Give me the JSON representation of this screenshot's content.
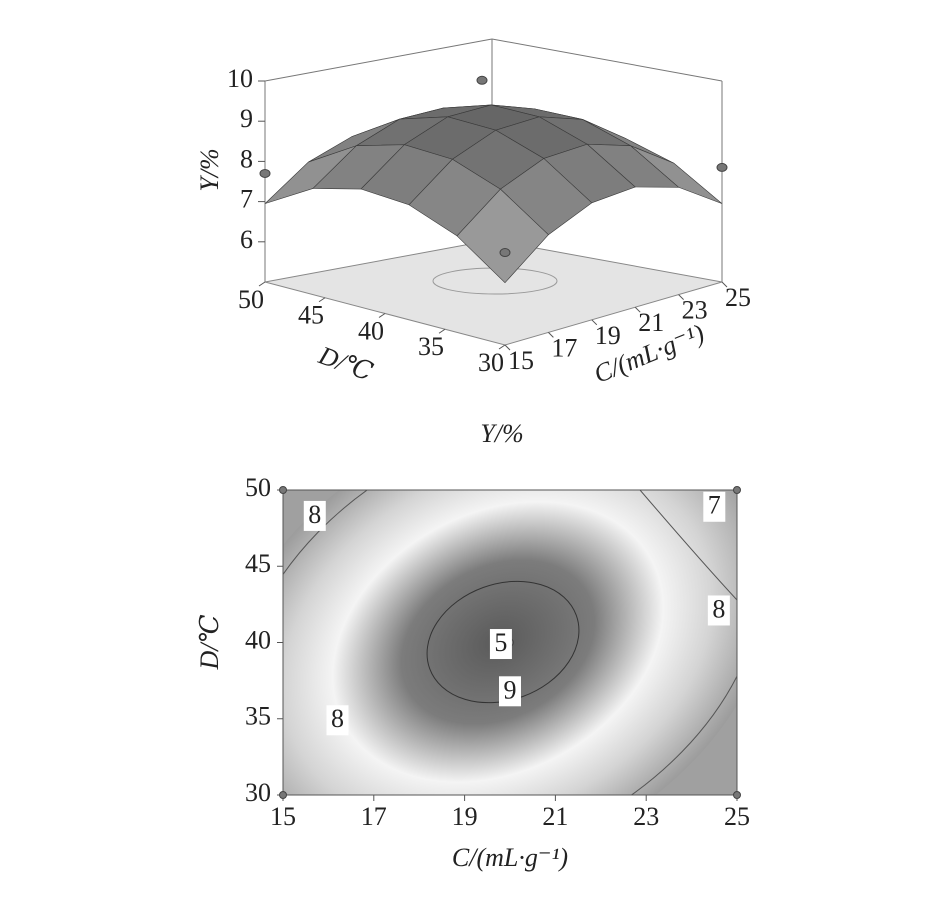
{
  "chart_data": [
    {
      "type": "surface",
      "zlabel": "Y/%",
      "xlabel": "C/(mL·g⁻¹)",
      "ylabel": "D/℃",
      "x": [
        15,
        17,
        19,
        21,
        23,
        25
      ],
      "y": [
        30,
        34,
        38,
        42,
        46,
        50
      ],
      "z": [
        [
          6.55,
          7.43,
          7.91,
          7.99,
          7.67,
          6.95
        ],
        [
          7.4,
          8.25,
          8.7,
          8.74,
          8.39,
          7.64
        ],
        [
          7.86,
          8.68,
          9.09,
          9.11,
          8.73,
          7.94
        ],
        [
          7.94,
          8.73,
          9.11,
          9.09,
          8.68,
          7.86
        ],
        [
          7.64,
          8.39,
          8.74,
          8.7,
          8.25,
          7.4
        ],
        [
          6.95,
          7.67,
          7.99,
          7.91,
          7.43,
          6.55
        ]
      ],
      "xlim": [
        15,
        25
      ],
      "ylim": [
        30,
        50
      ],
      "zlim": [
        5,
        10
      ],
      "xticks": [
        15,
        17,
        19,
        21,
        23,
        25
      ],
      "yticks": [
        30,
        35,
        40,
        45,
        50
      ],
      "zticks": [
        6,
        7,
        8,
        9,
        10
      ],
      "points": {
        "x": [
          15,
          15,
          25,
          25
        ],
        "y": [
          30,
          50,
          30,
          50
        ],
        "z": [
          7.3,
          7.7,
          7.85,
          8.45
        ]
      }
    },
    {
      "type": "contour",
      "title": "Y/%",
      "xlabel": "C/(mL·g⁻¹)",
      "ylabel": "D/℃",
      "xlim": [
        15,
        25
      ],
      "ylim": [
        30,
        50
      ],
      "xticks": [
        15,
        17,
        19,
        21,
        23,
        25
      ],
      "yticks": [
        30,
        35,
        40,
        45,
        50
      ],
      "contour_labels": [
        {
          "value": 8,
          "x": 15.7,
          "y": 48.3
        },
        {
          "value": 7,
          "x": 24.5,
          "y": 48.9
        },
        {
          "value": 8,
          "x": 24.6,
          "y": 42.1
        },
        {
          "value": 5,
          "x": 19.8,
          "y": 39.9
        },
        {
          "value": 9,
          "x": 20.0,
          "y": 36.8
        },
        {
          "value": 8,
          "x": 16.2,
          "y": 34.9
        }
      ],
      "points": {
        "x": [
          15,
          15,
          25,
          25,
          20
        ],
        "y": [
          30,
          50,
          50,
          30,
          40
        ]
      }
    }
  ]
}
